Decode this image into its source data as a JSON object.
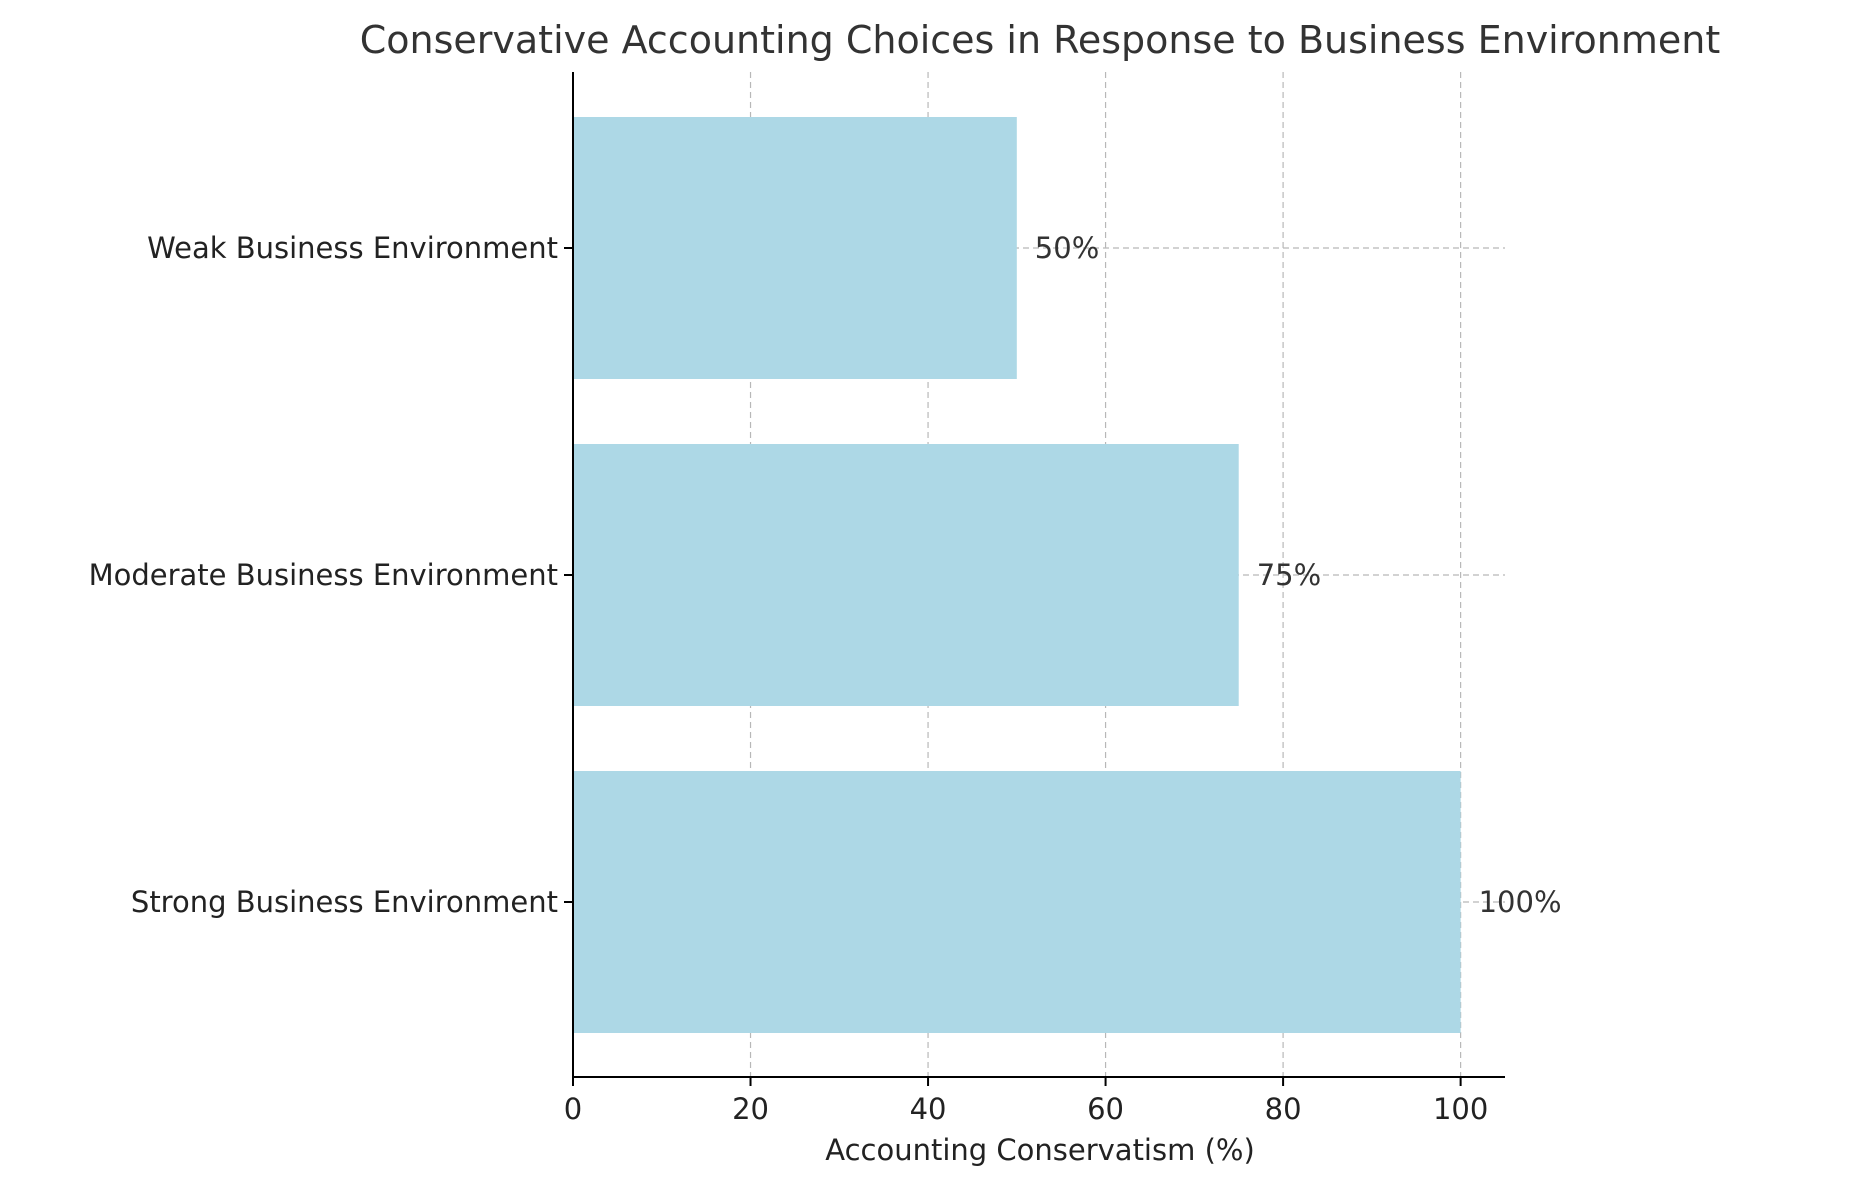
{
  "chart_data": {
    "type": "bar",
    "orientation": "horizontal",
    "title": "Conservative Accounting Choices in Response to Business Environment",
    "xlabel": "Accounting Conservatism (%)",
    "ylabel": "",
    "categories": [
      "Strong Business Environment",
      "Moderate Business Environment",
      "Weak Business Environment"
    ],
    "values": [
      100,
      75,
      50
    ],
    "data_labels": [
      "100%",
      "75%",
      "50%"
    ],
    "xlim": [
      0,
      105
    ],
    "xticks": [
      0,
      20,
      40,
      60,
      80,
      100
    ],
    "xtick_labels": [
      "0",
      "20",
      "40",
      "60",
      "80",
      "100"
    ],
    "grid": true,
    "bar_color": "#add8e6",
    "legend": "none"
  }
}
